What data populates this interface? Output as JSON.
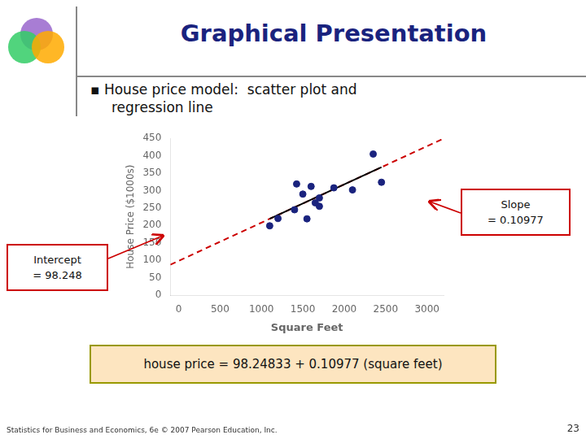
{
  "chart_data": {
    "type": "scatter",
    "title": "Graphical Presentation",
    "subtitle": [
      "▪ House price model:  scatter plot and",
      "regression line"
    ],
    "xlabel": "Square Feet",
    "ylabel": "House Price ($1000s)",
    "series": [
      {
        "type": "line",
        "color": "#cc0000",
        "line_style": "dashed",
        "x": [
          -100,
          3200
        ],
        "values": [
          87.27133,
          449.51233
        ]
      },
      {
        "type": "line",
        "color": "#000000",
        "line_style": "solid",
        "x": [
          1100,
          2450
        ],
        "values": [
          218.99533,
          367.18483
        ]
      },
      {
        "type": "scatter",
        "color": "#1a237e",
        "marker": "circle",
        "x": [
          1400,
          1600,
          1700,
          1875,
          1100,
          1550,
          2350,
          2450,
          1425,
          1700,
          1200,
          1500,
          1650,
          2100
        ],
        "values": [
          245,
          312,
          279,
          308,
          199,
          219,
          405,
          324,
          319,
          255,
          220,
          290,
          265,
          302
        ]
      }
    ],
    "xlim": [
      -100,
      3200
    ],
    "ylim": [
      0,
      450
    ],
    "xticks": [
      0,
      500,
      1000,
      1500,
      2000,
      2500,
      3000
    ],
    "yticks": [
      0,
      50,
      100,
      150,
      200,
      250,
      300,
      350,
      400,
      450
    ],
    "grid": false,
    "annotations": [
      "Intercept\n= 98.248",
      "Slope\n= 0.10977",
      "house price = 98.24833 + 0.10977 (square feet)",
      "Statistics for Business and Economics, 6e © 2007 Pearson Education, Inc.",
      "23"
    ]
  }
}
